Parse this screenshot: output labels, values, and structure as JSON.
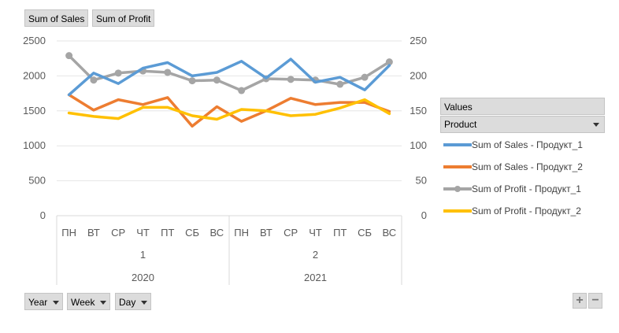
{
  "value_buttons": {
    "sales": "Sum of Sales",
    "profit": "Sum of Profit"
  },
  "legend": {
    "values_label": "Values",
    "filter_label": "Product",
    "items": [
      {
        "label": "Sum of Sales - Продукт_1",
        "color": "#5b9bd5",
        "marker": false
      },
      {
        "label": "Sum of Sales - Продукт_2",
        "color": "#ed7d31",
        "marker": false
      },
      {
        "label": "Sum of Profit - Продукт_1",
        "color": "#a5a5a5",
        "marker": true
      },
      {
        "label": "Sum of Profit - Продукт_2",
        "color": "#ffc000",
        "marker": false
      }
    ]
  },
  "axis_buttons": {
    "year": "Year",
    "week": "Week",
    "day": "Day"
  },
  "zoom": {
    "plus": "+",
    "minus": "−"
  },
  "chart_data": {
    "type": "line",
    "x": {
      "days": [
        "ПН",
        "ВТ",
        "СР",
        "ЧТ",
        "ПТ",
        "СБ",
        "ВС",
        "ПН",
        "ВТ",
        "СР",
        "ЧТ",
        "ПТ",
        "СБ",
        "ВС"
      ],
      "weeks": [
        "1",
        "2"
      ],
      "years": [
        "2020",
        "2021"
      ]
    },
    "primary_axis": {
      "min": 0,
      "max": 2500,
      "ticks": [
        0,
        500,
        1000,
        1500,
        2000,
        2500
      ]
    },
    "secondary_axis": {
      "min": 0,
      "max": 250,
      "ticks": [
        0,
        50,
        100,
        150,
        200,
        250
      ]
    },
    "grid": true,
    "legend_position": "right",
    "series": [
      {
        "name": "Sum of Sales - Продукт_1",
        "axis": "primary",
        "color": "#5b9bd5",
        "values": [
          1730,
          2040,
          1890,
          2110,
          2190,
          2000,
          2050,
          2210,
          1970,
          2240,
          1910,
          1980,
          1800,
          2150
        ]
      },
      {
        "name": "Sum of Sales - Продукт_2",
        "axis": "primary",
        "color": "#ed7d31",
        "values": [
          1730,
          1510,
          1660,
          1590,
          1690,
          1280,
          1560,
          1350,
          1500,
          1680,
          1590,
          1620,
          1620,
          1490
        ]
      },
      {
        "name": "Sum of Profit - Продукт_1",
        "axis": "secondary",
        "color": "#a5a5a5",
        "marker": true,
        "values": [
          229,
          194,
          204,
          207,
          205,
          193,
          194,
          179,
          196,
          195,
          194,
          188,
          198,
          220
        ]
      },
      {
        "name": "Sum of Profit - Продукт_2",
        "axis": "secondary",
        "color": "#ffc000",
        "values": [
          147,
          142,
          139,
          155,
          155,
          143,
          138,
          152,
          150,
          143,
          145,
          154,
          166,
          146
        ]
      }
    ]
  }
}
